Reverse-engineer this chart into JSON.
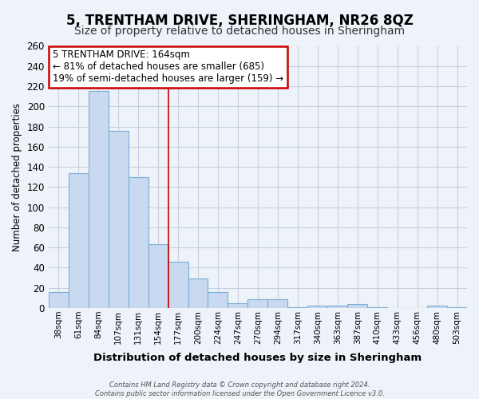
{
  "title": "5, TRENTHAM DRIVE, SHERINGHAM, NR26 8QZ",
  "subtitle": "Size of property relative to detached houses in Sheringham",
  "xlabel": "Distribution of detached houses by size in Sheringham",
  "ylabel": "Number of detached properties",
  "categories": [
    "38sqm",
    "61sqm",
    "84sqm",
    "107sqm",
    "131sqm",
    "154sqm",
    "177sqm",
    "200sqm",
    "224sqm",
    "247sqm",
    "270sqm",
    "294sqm",
    "317sqm",
    "340sqm",
    "363sqm",
    "387sqm",
    "410sqm",
    "433sqm",
    "456sqm",
    "480sqm",
    "503sqm"
  ],
  "values": [
    16,
    134,
    215,
    176,
    130,
    63,
    46,
    29,
    16,
    5,
    9,
    9,
    1,
    2,
    2,
    4,
    1,
    0,
    0,
    2,
    1
  ],
  "bar_color": "#c8d9f0",
  "bar_edge_color": "#7bafd4",
  "highlight_index": 5,
  "vline_color": "#cc0000",
  "annotation_title": "5 TRENTHAM DRIVE: 164sqm",
  "annotation_line1": "← 81% of detached houses are smaller (685)",
  "annotation_line2": "19% of semi-detached houses are larger (159) →",
  "annotation_box_color": "#ffffff",
  "annotation_box_edge_color": "#cc0000",
  "ylim": [
    0,
    260
  ],
  "yticks": [
    0,
    20,
    40,
    60,
    80,
    100,
    120,
    140,
    160,
    180,
    200,
    220,
    240,
    260
  ],
  "footer_line1": "Contains HM Land Registry data © Crown copyright and database right 2024.",
  "footer_line2": "Contains public sector information licensed under the Open Government Licence v3.0.",
  "bg_color": "#eef2f9",
  "grid_color": "#c8d0e0",
  "title_fontsize": 12,
  "subtitle_fontsize": 10
}
